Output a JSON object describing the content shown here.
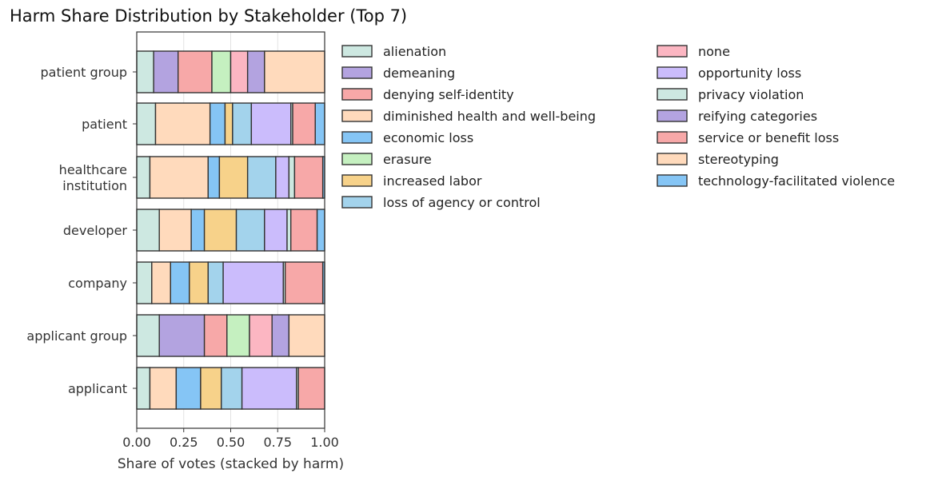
{
  "chart_data": {
    "type": "bar",
    "orientation": "horizontal",
    "stacked": true,
    "title": "Harm Share Distribution by Stakeholder (Top 7)",
    "xlabel": "Share of votes (stacked by harm)",
    "ylabel": "",
    "xlim": [
      0,
      1
    ],
    "xticks": [
      "0.00",
      "0.25",
      "0.50",
      "0.75",
      "1.00"
    ],
    "grid": "vertical",
    "legend_position": "right, two columns",
    "categories": [
      [
        "patient group"
      ],
      [
        "patient"
      ],
      [
        "healthcare",
        "institution"
      ],
      [
        "developer"
      ],
      [
        "company"
      ],
      [
        "applicant group"
      ],
      [
        "applicant"
      ]
    ],
    "series": [
      {
        "name": "alienation",
        "color": "#cde8e1",
        "values": [
          0.09,
          0.1,
          0.07,
          0.12,
          0.08,
          0.12,
          0.07
        ]
      },
      {
        "name": "demeaning",
        "color": "#b3a3e0",
        "values": [
          0.13,
          0,
          0,
          0,
          0,
          0.24,
          0
        ]
      },
      {
        "name": "denying self-identity",
        "color": "#f7a8a8",
        "values": [
          0.18,
          0,
          0,
          0,
          0,
          0.12,
          0
        ]
      },
      {
        "name": "diminished health and well-being",
        "color": "#ffdabc",
        "values": [
          0,
          0.29,
          0.31,
          0.17,
          0.1,
          0,
          0.14
        ]
      },
      {
        "name": "economic loss",
        "color": "#85c5f5",
        "values": [
          0,
          0.08,
          0.06,
          0.07,
          0.1,
          0,
          0.13
        ]
      },
      {
        "name": "erasure",
        "color": "#c5f0c0",
        "values": [
          0.1,
          0,
          0,
          0,
          0,
          0.12,
          0
        ]
      },
      {
        "name": "increased labor",
        "color": "#f7d28a",
        "values": [
          0,
          0.04,
          0.15,
          0.17,
          0.1,
          0,
          0.11
        ]
      },
      {
        "name": "loss of agency or control",
        "color": "#a3d3ec",
        "values": [
          0,
          0.1,
          0.15,
          0.15,
          0.08,
          0,
          0.11
        ]
      },
      {
        "name": "none",
        "color": "#fcb6c2",
        "values": [
          0.09,
          0,
          0,
          0,
          0,
          0.12,
          0
        ]
      },
      {
        "name": "opportunity loss",
        "color": "#cbbcfc",
        "values": [
          0,
          0.21,
          0.07,
          0.12,
          0.32,
          0,
          0.29
        ]
      },
      {
        "name": "privacy violation",
        "color": "#cde8e1",
        "values": [
          0,
          0.01,
          0.03,
          0.02,
          0.01,
          0,
          0.01
        ]
      },
      {
        "name": "reifying categories",
        "color": "#b3a3e0",
        "values": [
          0.09,
          0,
          0,
          0,
          0,
          0.09,
          0
        ]
      },
      {
        "name": "service or benefit loss",
        "color": "#f7a8a8",
        "values": [
          0,
          0.12,
          0.15,
          0.14,
          0.2,
          0,
          0.14
        ]
      },
      {
        "name": "stereotyping",
        "color": "#ffdabc",
        "values": [
          0.32,
          0,
          0,
          0,
          0,
          0.19,
          0
        ]
      },
      {
        "name": "technology-facilitated violence",
        "color": "#85c5f5",
        "values": [
          0,
          0.05,
          0.01,
          0.04,
          0.01,
          0,
          0.01
        ]
      }
    ]
  }
}
